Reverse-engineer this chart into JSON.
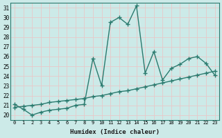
{
  "title": "",
  "xlabel": "Humidex (Indice chaleur)",
  "ylabel": "",
  "bg_color": "#cceae8",
  "plot_bg_color": "#cceae8",
  "grid_color": "#e8c8c8",
  "line_color": "#2a7a6e",
  "xlim": [
    -0.5,
    23.5
  ],
  "ylim": [
    19.5,
    31.5
  ],
  "xticks": [
    0,
    1,
    2,
    3,
    4,
    5,
    6,
    7,
    8,
    9,
    10,
    11,
    12,
    13,
    14,
    15,
    16,
    17,
    18,
    19,
    20,
    21,
    22,
    23
  ],
  "yticks": [
    20,
    21,
    22,
    23,
    24,
    25,
    26,
    27,
    28,
    29,
    30,
    31
  ],
  "line1_x": [
    0,
    1,
    2,
    3,
    4,
    5,
    6,
    7,
    8,
    9,
    10,
    11,
    12,
    13,
    14,
    15,
    16,
    17,
    18,
    19,
    20,
    21,
    22,
    23
  ],
  "line1_y": [
    21.1,
    20.6,
    20.0,
    20.3,
    20.5,
    20.6,
    20.7,
    21.0,
    21.1,
    25.8,
    23.0,
    29.5,
    30.0,
    29.3,
    31.2,
    24.3,
    26.5,
    23.6,
    24.8,
    25.2,
    25.8,
    26.0,
    25.3,
    24.1
  ],
  "line2_x": [
    0,
    1,
    2,
    3,
    4,
    5,
    6,
    7,
    8,
    9,
    10,
    11,
    12,
    13,
    14,
    15,
    16,
    17,
    18,
    19,
    20,
    21,
    22,
    23
  ],
  "line2_y": [
    20.8,
    20.9,
    21.0,
    21.1,
    21.3,
    21.4,
    21.5,
    21.6,
    21.7,
    21.9,
    22.0,
    22.2,
    22.4,
    22.5,
    22.7,
    22.9,
    23.1,
    23.3,
    23.5,
    23.7,
    23.9,
    24.1,
    24.3,
    24.5
  ],
  "marker": "+",
  "markersize": 4,
  "linewidth": 1.0
}
